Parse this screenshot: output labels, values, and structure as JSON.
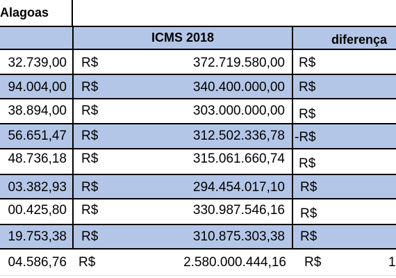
{
  "table": {
    "title": "Alagoas",
    "headers": {
      "icms_2018": "ICMS 2018",
      "difference": "diferença"
    },
    "currency_symbol": "R$",
    "rows": [
      {
        "left_value": "32.739,00",
        "cur": "R$",
        "icms": "372.719.580,00",
        "diff_cur": "R$",
        "diff_value": ""
      },
      {
        "left_value": "94.004,00",
        "cur": "R$",
        "icms": "340.400.000,00",
        "diff_cur": "R$",
        "diff_value": ""
      },
      {
        "left_value": "38.894,00",
        "cur": "R$",
        "icms": "303.000.000,00",
        "diff_cur": "R$",
        "diff_value": ""
      },
      {
        "left_value": "56.651,47",
        "cur": "R$",
        "icms": "312.502.336,78",
        "diff_cur": "-R$",
        "diff_value": ""
      },
      {
        "left_value": "48.736,18",
        "cur": "R$",
        "icms": "315.061.660,74",
        "diff_cur": "R$",
        "diff_value": ""
      },
      {
        "left_value": "03.382,93",
        "cur": "R$",
        "icms": "294.454.017,10",
        "diff_cur": "R$",
        "diff_value": ""
      },
      {
        "left_value": "00.425,80",
        "cur": "R$",
        "icms": "330.987.546,16",
        "diff_cur": "R$",
        "diff_value": ""
      },
      {
        "left_value": "19.753,38",
        "cur": "R$",
        "icms": "310.875.303,38",
        "diff_cur": "R$",
        "diff_value": ""
      }
    ],
    "total": {
      "left_value": "04.586,76",
      "cur": "R$",
      "icms": "2.580.000.444,16",
      "diff_cur": "R$",
      "diff_value": "1"
    },
    "colors": {
      "header_fill": "#b4c6e7",
      "band_fill": "#b4c6e7",
      "grid": "#000000"
    }
  }
}
